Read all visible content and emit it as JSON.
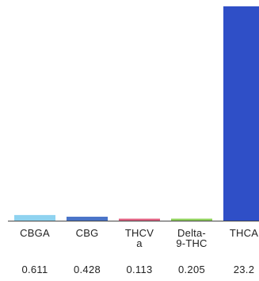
{
  "chart_data": {
    "type": "bar",
    "categories": [
      "CBGA",
      "CBG",
      "THCV\na",
      "Delta-\n9-THC",
      "THCA"
    ],
    "values": [
      0.611,
      0.428,
      0.113,
      0.205,
      23.2
    ],
    "value_labels": [
      "0.611",
      "0.428",
      "0.113",
      "0.205",
      "23.2"
    ],
    "colors": [
      "#8fd3f0",
      "#4a74c8",
      "#e06080",
      "#8ed05a",
      "#2f4fc7"
    ],
    "title": "",
    "xlabel": "",
    "ylabel": "",
    "ylim": [
      0,
      23.2
    ],
    "grid": false,
    "legend": "none"
  }
}
